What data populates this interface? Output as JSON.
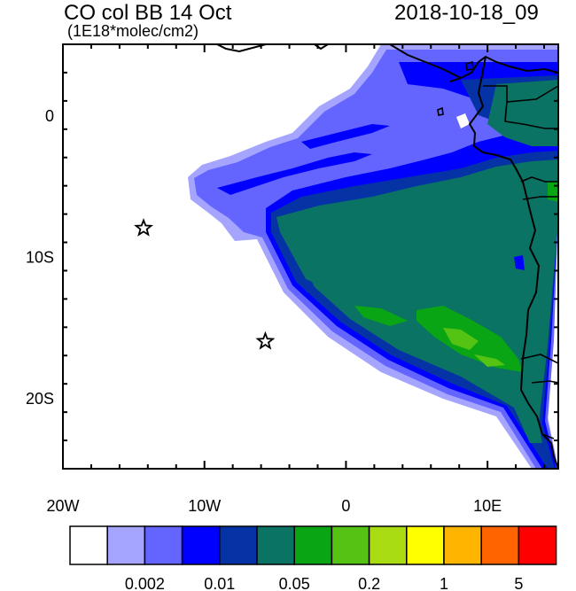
{
  "header": {
    "title": "CO col BB 14 Oct",
    "units": "(1E18*molec/cm2)",
    "datetime": "2018-10-18_09"
  },
  "map": {
    "lon_range": [
      -20,
      15
    ],
    "lat_range": [
      -25,
      5
    ],
    "x_ticks": [
      {
        "value": -20,
        "label": "20W"
      },
      {
        "value": -10,
        "label": "10W"
      },
      {
        "value": 0,
        "label": "0"
      },
      {
        "value": 10,
        "label": "10E"
      }
    ],
    "y_ticks": [
      {
        "value": 0,
        "label": "0"
      },
      {
        "value": -10,
        "label": "10S"
      },
      {
        "value": -20,
        "label": "20S"
      }
    ],
    "markers": [
      {
        "lon": -14.3,
        "lat": -8.0,
        "symbol": "star"
      },
      {
        "lon": -5.7,
        "lat": -16.0,
        "symbol": "star"
      }
    ]
  },
  "colorbar": {
    "colors": [
      "#ffffff",
      "#a5a5ff",
      "#6464ff",
      "#0000ff",
      "#0532a5",
      "#0a7364",
      "#0aa514",
      "#55c314",
      "#aadc14",
      "#ffff00",
      "#ffb400",
      "#ff6400",
      "#ff0000"
    ],
    "labels": [
      {
        "text": "0.002",
        "after_box": 2
      },
      {
        "text": "0.01",
        "after_box": 4
      },
      {
        "text": "0.05",
        "after_box": 6
      },
      {
        "text": "0.2",
        "after_box": 8
      },
      {
        "text": "1",
        "after_box": 10
      },
      {
        "text": "5",
        "after_box": 12
      }
    ]
  }
}
